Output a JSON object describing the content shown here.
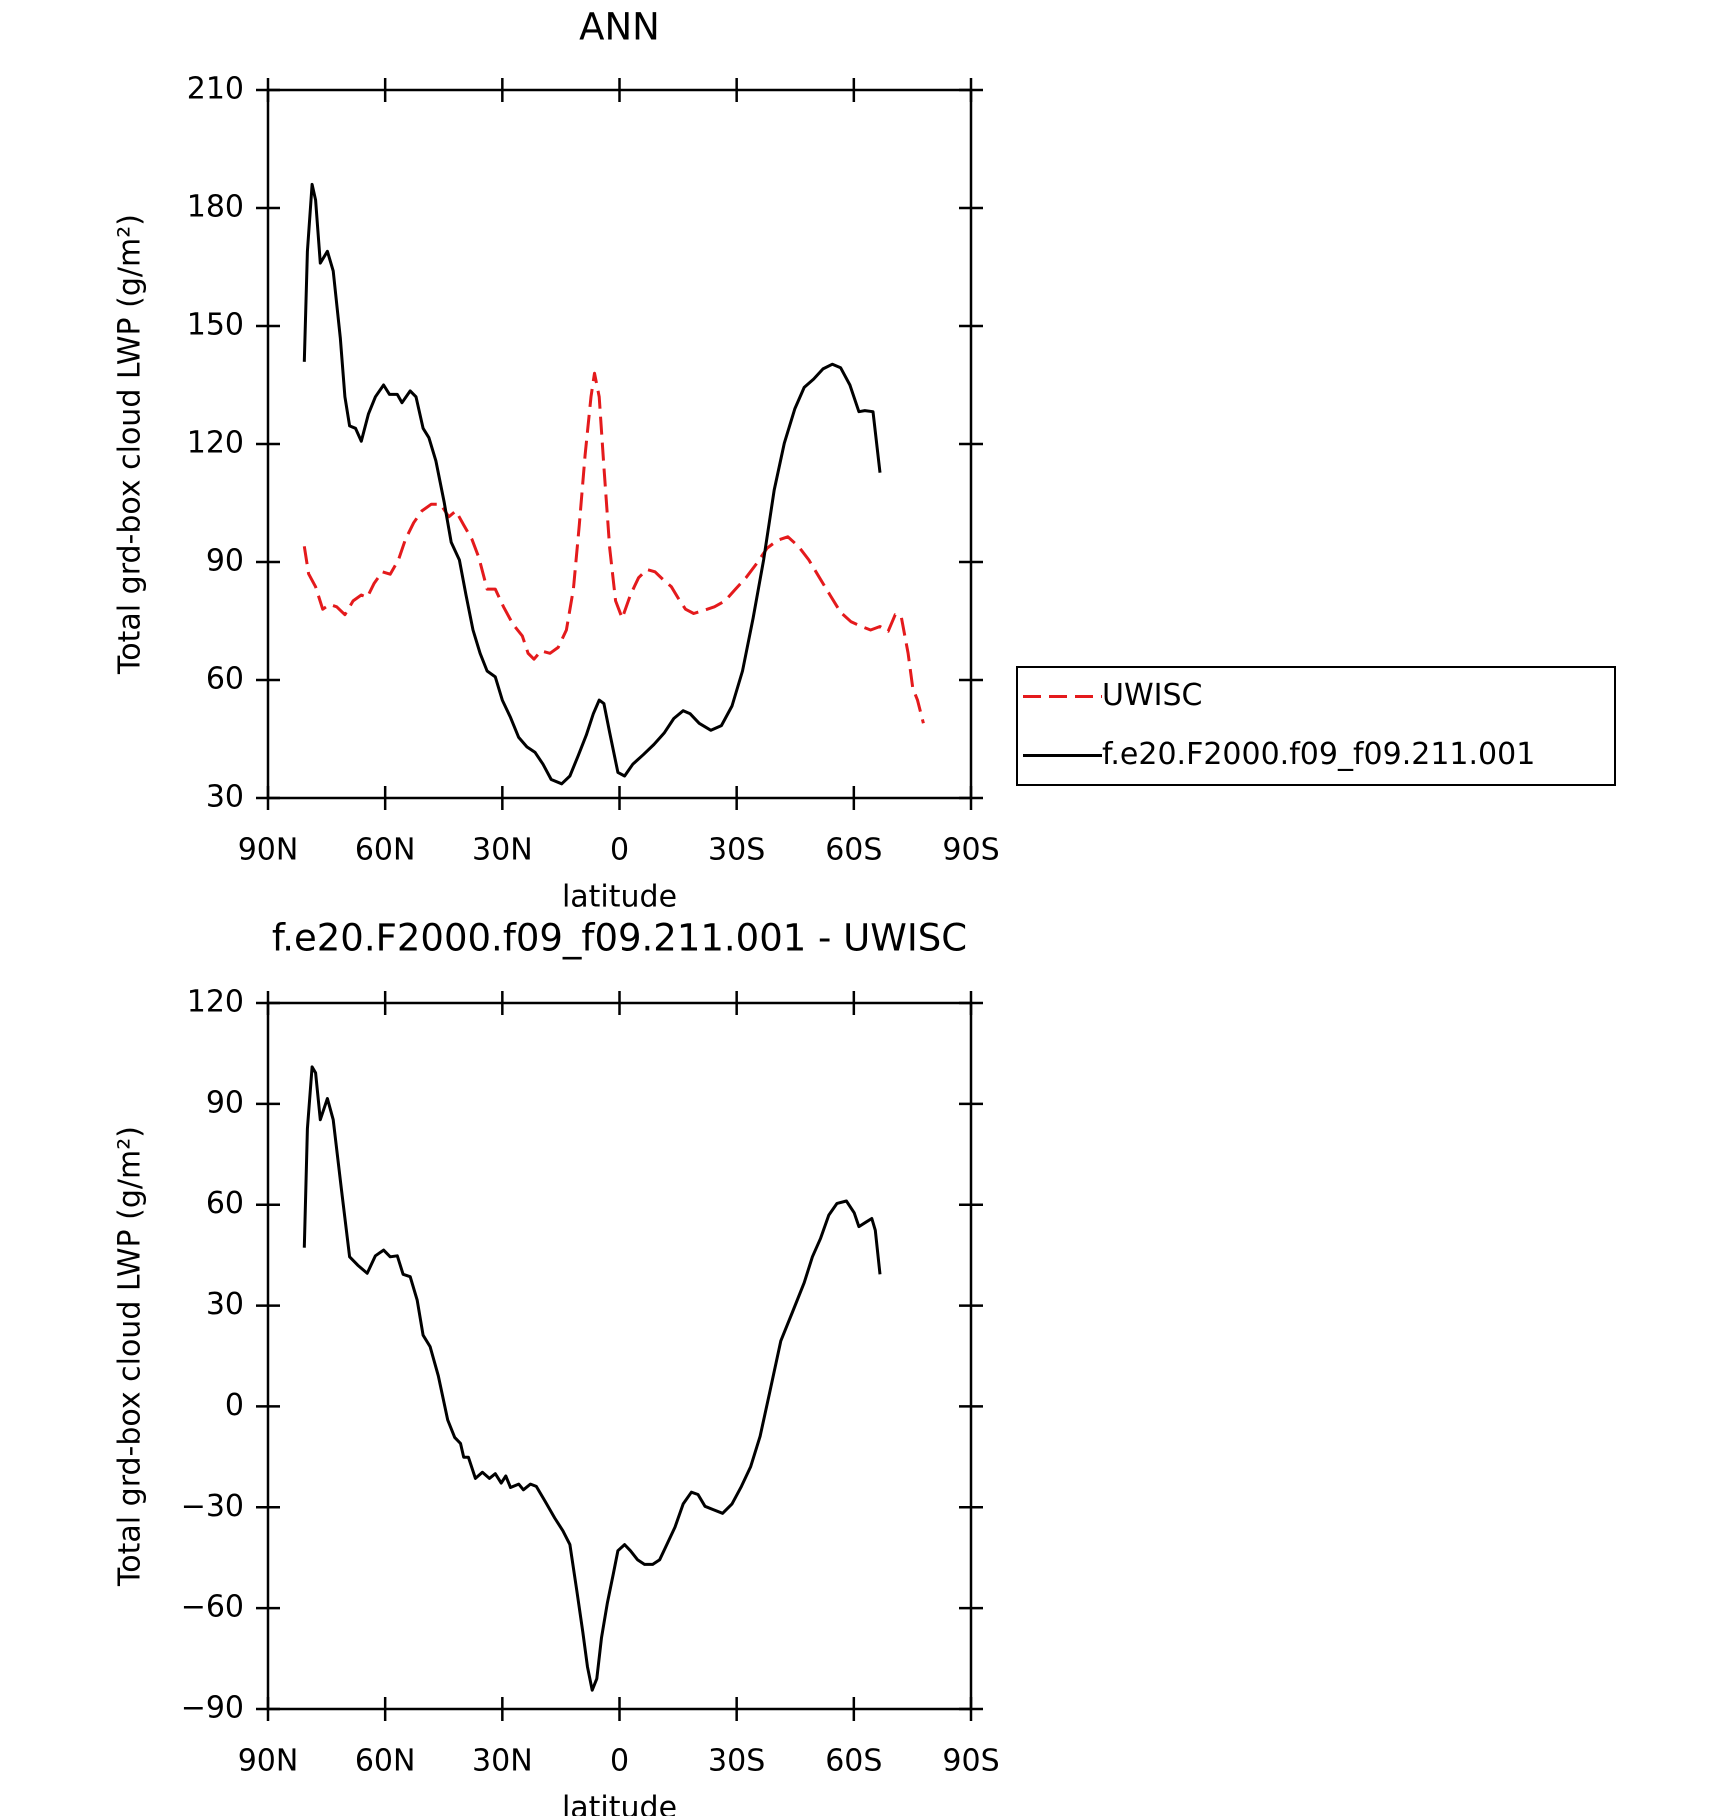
{
  "chart_data": [
    {
      "type": "line",
      "title": "ANN",
      "xlabel": "latitude",
      "ylabel": "Total grd-box cloud LWP (g/m²)",
      "xlim": [
        90,
        -90
      ],
      "xticks": [
        {
          "value": 90,
          "label": "90N"
        },
        {
          "value": 60,
          "label": "60N"
        },
        {
          "value": 30,
          "label": "30N"
        },
        0,
        {
          "value": -30,
          "label": "30S"
        },
        {
          "value": -60,
          "label": "60S"
        },
        {
          "value": -90,
          "label": "90S"
        }
      ],
      "ylim": [
        30,
        210
      ],
      "yticks": [
        30,
        60,
        90,
        120,
        150,
        180,
        210
      ],
      "legend": "right",
      "series": [
        {
          "name": "UWISC",
          "color": "#e41a1c",
          "style": "dashed",
          "x": [
            80.7,
            79.6,
            77.8,
            76.0,
            74.2,
            72.4,
            70.3,
            68.2,
            66.1,
            64.6,
            62.8,
            60.7,
            58.7,
            56.6,
            54.8,
            52.7,
            50.6,
            48.2,
            45.8,
            43.7,
            41.9,
            39.9,
            37.8,
            36.0,
            33.9,
            31.8,
            29.7,
            27.3,
            24.9,
            23.4,
            21.9,
            20.1,
            17.8,
            15.7,
            13.6,
            11.8,
            10.3,
            8.8,
            7.3,
            6.4,
            5.2,
            4.0,
            2.5,
            1.0,
            -0.7,
            -2.8,
            -4.9,
            -7.0,
            -9.1,
            -11.2,
            -13.3,
            -15.1,
            -16.9,
            -19.0,
            -21.6,
            -24.3,
            -27.0,
            -29.7,
            -32.4,
            -35.1,
            -37.8,
            -40.4,
            -43.1,
            -45.8,
            -48.5,
            -51.2,
            -53.9,
            -56.6,
            -59.3,
            -62.0,
            -64.3,
            -66.7,
            -68.8,
            -70.6,
            -72.1,
            -73.9,
            -75.1,
            -76.3,
            -77.8
          ],
          "values": [
            94,
            87,
            83.7,
            78,
            79.2,
            78.6,
            76.6,
            80.1,
            81.6,
            81,
            84.6,
            87.5,
            86.9,
            90.5,
            95.8,
            100,
            103,
            104.7,
            104.7,
            101.5,
            103,
            99.4,
            95.8,
            91.1,
            83.1,
            83.1,
            78.6,
            74.2,
            71.2,
            66.8,
            65.3,
            67.4,
            66.8,
            68.3,
            72.7,
            83.1,
            99.4,
            117.2,
            132,
            138,
            132,
            114.2,
            93.5,
            80.1,
            75.7,
            81.6,
            86,
            88.1,
            87.5,
            85.5,
            83.7,
            80.7,
            78,
            76.9,
            77.7,
            78.6,
            80.1,
            83.1,
            86,
            89.6,
            93.5,
            95.5,
            96.4,
            94,
            90.5,
            86,
            81.6,
            77.2,
            74.8,
            73.6,
            72.7,
            73.6,
            72.4,
            76.6,
            76.3,
            66.8,
            57.9,
            54.9,
            49
          ]
        },
        {
          "name": "f.e20.F2000.f09_f09.211.001",
          "color": "#000000",
          "style": "solid",
          "x": [
            80.7,
            79.9,
            78.7,
            77.8,
            76.6,
            74.8,
            73.3,
            71.5,
            70.3,
            69.1,
            67.6,
            66.1,
            64.3,
            62.5,
            60.4,
            58.9,
            56.9,
            55.7,
            53.6,
            52.1,
            50.3,
            48.8,
            47.0,
            44.9,
            43.1,
            41.0,
            39.3,
            37.5,
            35.7,
            33.9,
            31.8,
            30.0,
            27.9,
            25.8,
            23.7,
            21.6,
            19.6,
            17.5,
            14.8,
            12.7,
            10.6,
            8.5,
            6.7,
            5.2,
            4.0,
            2.5,
            0.4,
            -1.3,
            -3.4,
            -6.1,
            -8.8,
            -11.5,
            -13.9,
            -16.3,
            -18.1,
            -20.4,
            -23.4,
            -26.1,
            -28.8,
            -31.5,
            -34.2,
            -36.9,
            -39.6,
            -42.2,
            -44.9,
            -47.3,
            -49.7,
            -52.1,
            -54.5,
            -56.6,
            -59.0,
            -61.3,
            -62.8,
            -64.9,
            -66.7
          ],
          "values": [
            140.9,
            169,
            186,
            182,
            166,
            169,
            164,
            147,
            132,
            124.6,
            124,
            120.7,
            127.6,
            132,
            135,
            132.6,
            132.6,
            130.5,
            133.5,
            132,
            124,
            121.6,
            115.7,
            105.3,
            95,
            90.5,
            81.6,
            72.7,
            66.8,
            62.3,
            60.8,
            54.9,
            50.5,
            45.4,
            43,
            41.6,
            38.6,
            34.7,
            33.6,
            35.6,
            40.7,
            46,
            51.4,
            54.9,
            54,
            46.6,
            36.5,
            35.6,
            38.6,
            41,
            43.6,
            46.6,
            50.2,
            52.2,
            51.4,
            49,
            47.2,
            48.4,
            53.4,
            62.3,
            75.7,
            90.5,
            108.3,
            120.2,
            129,
            134.4,
            136.5,
            139.1,
            140.3,
            139.4,
            135,
            128.2,
            128.5,
            128.2,
            112.7
          ]
        }
      ]
    },
    {
      "type": "line",
      "title": "f.e20.F2000.f09_f09.211.001 - UWISC",
      "xlabel": "latitude",
      "ylabel": "Total grd-box cloud LWP (g/m²)",
      "xlim": [
        90,
        -90
      ],
      "xticks": [
        {
          "value": 90,
          "label": "90N"
        },
        {
          "value": 60,
          "label": "60N"
        },
        {
          "value": 30,
          "label": "30N"
        },
        0,
        {
          "value": -30,
          "label": "30S"
        },
        {
          "value": -60,
          "label": "60S"
        },
        {
          "value": -90,
          "label": "90S"
        }
      ],
      "ylim": [
        -90,
        120
      ],
      "yticks": [
        {
          "value": -90,
          "label": "−90"
        },
        {
          "value": -60,
          "label": "−60"
        },
        {
          "value": -30,
          "label": "−30"
        },
        0,
        30,
        60,
        90,
        120
      ],
      "series": [
        {
          "color": "#000000",
          "style": "solid",
          "x": [
            80.7,
            79.9,
            78.7,
            77.8,
            76.6,
            74.8,
            73.3,
            71.2,
            69.1,
            67.0,
            64.6,
            62.5,
            60.4,
            58.7,
            56.9,
            55.4,
            53.6,
            51.8,
            50.3,
            48.5,
            46.4,
            44.0,
            42.2,
            40.7,
            39.9,
            38.7,
            36.9,
            35.1,
            33.3,
            31.8,
            30.3,
            29.1,
            27.9,
            25.8,
            24.6,
            22.8,
            21.3,
            19.0,
            16.6,
            14.5,
            12.7,
            10.9,
            9.4,
            8.2,
            7.0,
            5.8,
            4.6,
            3.1,
            1.6,
            0.4,
            -1.3,
            -2.8,
            -4.6,
            -6.4,
            -8.5,
            -10.3,
            -12.1,
            -14.2,
            -16.3,
            -18.4,
            -20.1,
            -21.9,
            -24.0,
            -26.4,
            -28.8,
            -31.2,
            -33.6,
            -36.0,
            -38.4,
            -41.3,
            -44.3,
            -47.3,
            -49.4,
            -51.5,
            -53.6,
            -55.7,
            -58.1,
            -60.1,
            -61.3,
            -63.1,
            -64.6,
            -65.5,
            -66.7
          ],
          "values": [
            47.2,
            82.6,
            101,
            99.2,
            85.3,
            91.6,
            85.3,
            64.6,
            44.5,
            42,
            39.6,
            44.8,
            46.5,
            44.5,
            44.8,
            39.3,
            38.6,
            31.6,
            21.2,
            17.8,
            9.1,
            -4,
            -9.2,
            -11,
            -15.1,
            -15.1,
            -21.4,
            -19.6,
            -21.4,
            -20,
            -22.8,
            -20.7,
            -24.1,
            -23.1,
            -24.8,
            -23.1,
            -23.8,
            -28.3,
            -33.2,
            -37,
            -41.1,
            -55,
            -67.1,
            -77.5,
            -84.4,
            -81,
            -68.8,
            -58.4,
            -49.8,
            -42.9,
            -41.1,
            -42.9,
            -45.6,
            -47,
            -47,
            -45.6,
            -41.1,
            -35.9,
            -29,
            -25.5,
            -26.2,
            -29.7,
            -30.7,
            -31.8,
            -29,
            -23.8,
            -17.9,
            -8.9,
            3.9,
            19.5,
            28.1,
            36.8,
            44.5,
            50,
            56.9,
            60.4,
            61.1,
            57.6,
            53.5,
            54.8,
            55.9,
            52.4,
            39.3
          ]
        }
      ]
    }
  ]
}
